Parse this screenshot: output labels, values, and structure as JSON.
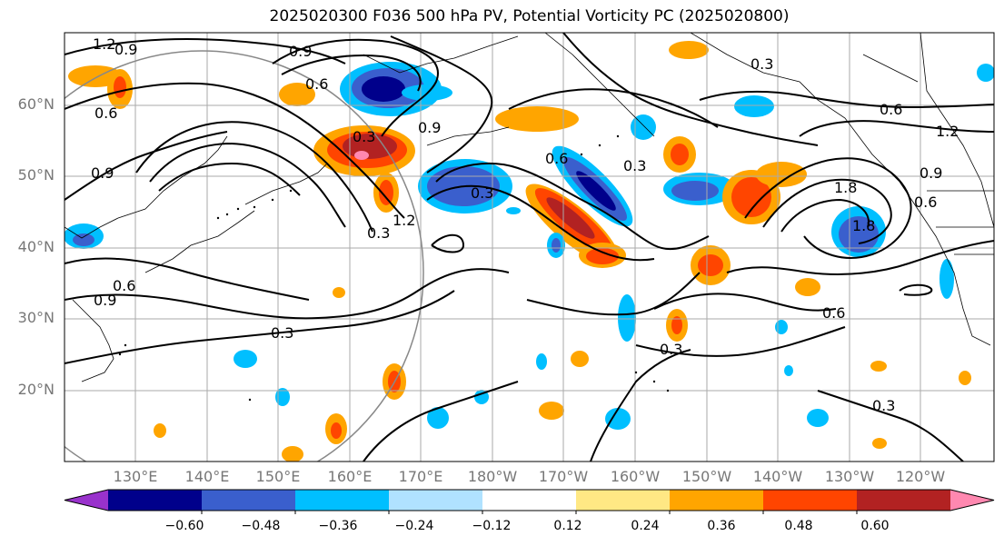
{
  "title": "2025020300 F036 500 hPa PV, Potential Vorticity PC (2025020800)",
  "latitude_labels": [
    "60°N",
    "50°N",
    "40°N",
    "30°N",
    "20°N"
  ],
  "longitude_labels": [
    "130°E",
    "140°E",
    "150°E",
    "160°E",
    "170°E",
    "180°W",
    "170°W",
    "160°W",
    "150°W",
    "140°W",
    "130°W",
    "120°W"
  ],
  "contour_labels": [
    "1.2",
    "0.9",
    "0.9",
    "0.6",
    "0.3",
    "0.6",
    "0.9",
    "1.2",
    "0.3",
    "0.3",
    "0.6",
    "1.2",
    "1.8",
    "1.8",
    "0.9",
    "0.3",
    "0.9",
    "0.6",
    "0.9",
    "0.6",
    "0.3",
    "0.3",
    "0.6",
    "0.3",
    "0.3",
    "0.6"
  ],
  "colorbar": {
    "ticks": [
      "−0.60",
      "−0.48",
      "−0.36",
      "−0.24",
      "−0.12",
      "0.12",
      "0.24",
      "0.36",
      "0.48",
      "0.60"
    ],
    "colors": [
      "#9932cc",
      "#00008b",
      "#3a5fcd",
      "#00bfff",
      "#b0e2ff",
      "#ffffff",
      "#ffe884",
      "#ffa500",
      "#ff4500",
      "#b22222",
      "#ff88b0"
    ]
  }
}
